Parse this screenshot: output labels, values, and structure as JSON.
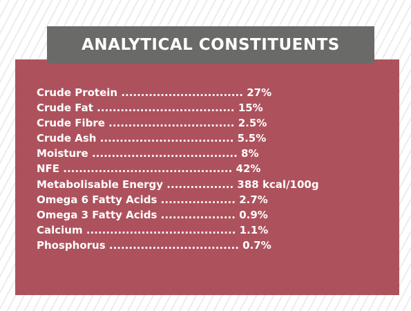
{
  "title": "ANALYTICAL CONSTITUENTS",
  "constituents": [
    {
      "name": "Crude Protein",
      "dots": "...............................",
      "value": "27%"
    },
    {
      "name": "Crude Fat",
      "dots": "...................................",
      "value": "15%"
    },
    {
      "name": "Crude Fibre",
      "dots": "................................",
      "value": "2.5%"
    },
    {
      "name": "Crude Ash",
      "dots": "..................................",
      "value": "5.5%"
    },
    {
      "name": "Moisture",
      "dots": ".....................................",
      "value": "8%"
    },
    {
      "name": "NFE",
      "dots": "...........................................",
      "value": "42%"
    },
    {
      "name": "Metabolisable Energy",
      "dots": ".................",
      "value": "388 kcal/100g"
    },
    {
      "name": "Omega 6 Fatty Acids",
      "dots": "...................",
      "value": "2.7%"
    },
    {
      "name": "Omega 3 Fatty Acids",
      "dots": "...................",
      "value": "0.9%"
    },
    {
      "name": "Calcium",
      "dots": "......................................",
      "value": "1.1%"
    },
    {
      "name": "Phosphorus",
      "dots": ".................................",
      "value": "0.7%"
    }
  ],
  "colors": {
    "panel": "#ad525d",
    "title_bar": "#6a6b69",
    "text": "#ffffff"
  }
}
